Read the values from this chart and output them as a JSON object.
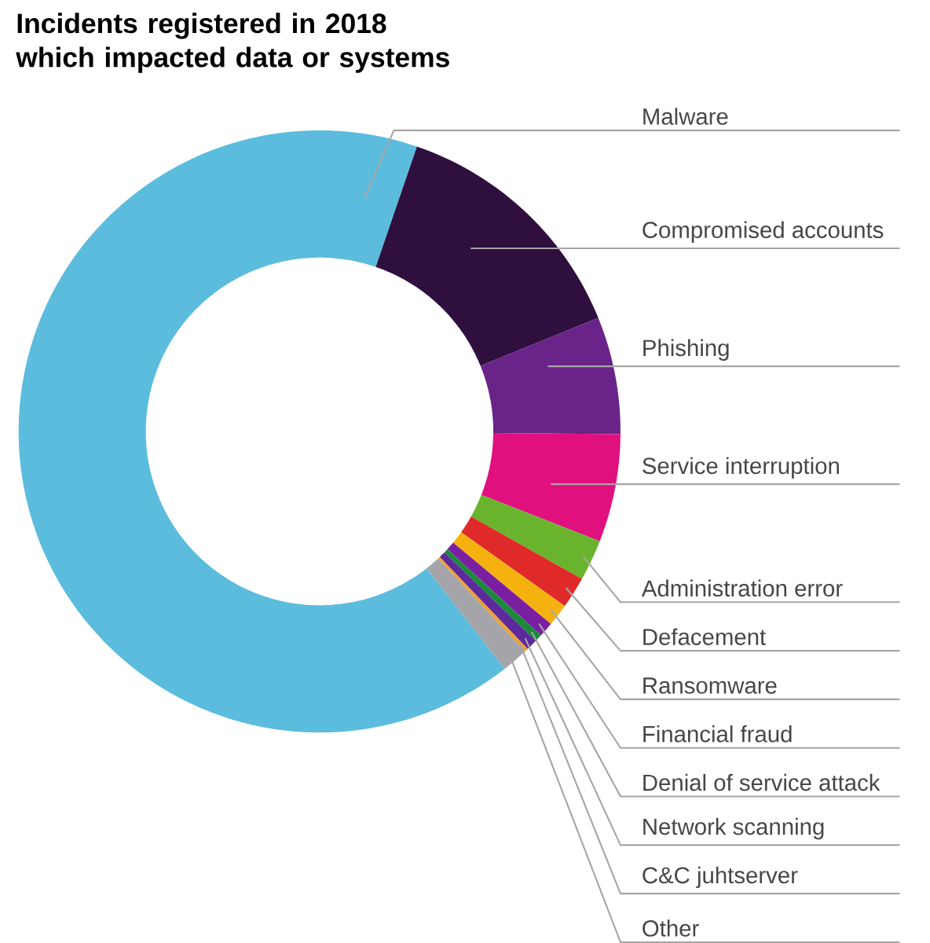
{
  "chart_data": {
    "type": "donut",
    "title": "Incidents registered in 2018 which impacted data or systems",
    "categories": [
      "Malware",
      "Compromised accounts",
      "Phishing",
      "Service interruption",
      "Administration error",
      "Defacement",
      "Ransomware",
      "Financial fraud",
      "Denial of service attack",
      "Network scanning",
      "C&C juhtserver",
      "Other"
    ],
    "values": [
      65.8,
      13.6,
      6.3,
      5.8,
      2.2,
      1.7,
      1.2,
      0.8,
      0.4,
      0.6,
      0.2,
      1.4
    ],
    "colors": [
      "#5bbcde",
      "#2e0f3e",
      "#6a2388",
      "#e0117f",
      "#6ab42d",
      "#e02a2a",
      "#f5b20f",
      "#7b1fa2",
      "#1b8a3a",
      "#5c2a9d",
      "#f0a030",
      "#a5a5a9"
    ]
  }
}
